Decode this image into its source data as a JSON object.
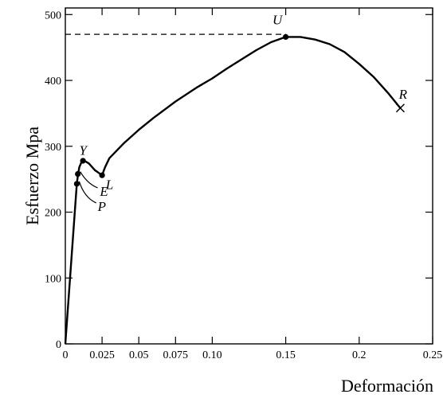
{
  "chart_data": {
    "type": "line",
    "title": "",
    "xlabel": "Deformación",
    "ylabel": "Esfuerzo  Mpa",
    "xlim": [
      0,
      0.25
    ],
    "ylim": [
      0,
      510
    ],
    "x_ticks": [
      0,
      0.025,
      0.05,
      0.075,
      0.1,
      0.15,
      0.2,
      0.25
    ],
    "x_tick_labels": [
      "0",
      "0.025",
      "0.05",
      "0.075",
      "0.10",
      "0.15",
      "0.2",
      "0.25"
    ],
    "y_ticks": [
      0,
      100,
      200,
      300,
      400,
      500
    ],
    "y_tick_labels": [
      "0",
      "100",
      "200",
      "300",
      "400",
      "500"
    ],
    "grid": false,
    "series": [
      {
        "x": [
          0,
          0.0078,
          0.0085,
          0.0095,
          0.011,
          0.013,
          0.016,
          0.02,
          0.025,
          0.027,
          0.03,
          0.04,
          0.05,
          0.06,
          0.075,
          0.09,
          0.1,
          0.11,
          0.12,
          0.13,
          0.14,
          0.15,
          0.16,
          0.17,
          0.18,
          0.19,
          0.2,
          0.21,
          0.22,
          0.228
        ],
        "y": [
          0,
          243,
          255,
          268,
          276,
          278,
          274,
          264,
          256,
          268,
          282,
          305,
          325,
          343,
          368,
          390,
          403,
          418,
          432,
          446,
          458,
          466,
          466,
          462,
          455,
          443,
          425,
          405,
          380,
          358
        ]
      }
    ],
    "points": [
      {
        "label": "P",
        "x": 0.0078,
        "y": 243
      },
      {
        "label": "E",
        "x": 0.0085,
        "y": 258
      },
      {
        "label": "Y",
        "x": 0.012,
        "y": 278
      },
      {
        "label": "L",
        "x": 0.025,
        "y": 256
      },
      {
        "label": "U",
        "x": 0.15,
        "y": 466
      },
      {
        "label": "R",
        "x": 0.228,
        "y": 358
      }
    ],
    "reference_line": {
      "y": 470,
      "style": "dashed"
    }
  }
}
